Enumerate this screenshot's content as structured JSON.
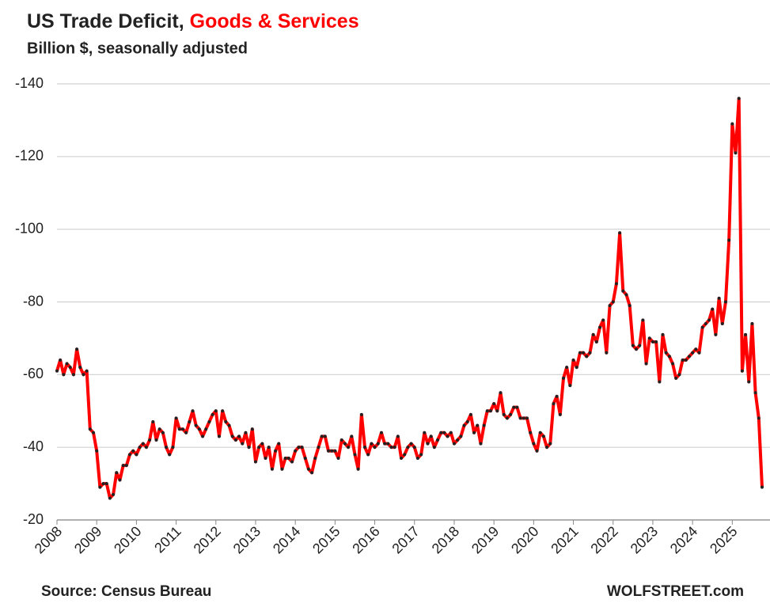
{
  "chart_data": {
    "type": "line",
    "title": "US Trade Deficit,",
    "title_highlight": "Goods & Services",
    "subtitle": "Billion $, seasonally adjusted",
    "source": "Source: Census Bureau",
    "credit": "WOLFSTREET.com",
    "ylim": [
      -20,
      -140
    ],
    "yticks": [
      -140,
      -120,
      -100,
      -80,
      -60,
      -40,
      -20
    ],
    "xlim": [
      2008,
      2025.85
    ],
    "xticks": [
      2008,
      2009,
      2010,
      2011,
      2012,
      2013,
      2014,
      2015,
      2016,
      2017,
      2018,
      2019,
      2020,
      2021,
      2022,
      2023,
      2024,
      2025
    ],
    "grid": true,
    "series": [
      {
        "color": "#ff0000",
        "marker_color": "#222222",
        "x": [
          2008.0,
          2008.083,
          2008.167,
          2008.25,
          2008.333,
          2008.417,
          2008.5,
          2008.583,
          2008.667,
          2008.75,
          2008.833,
          2008.917,
          2009.0,
          2009.083,
          2009.167,
          2009.25,
          2009.333,
          2009.417,
          2009.5,
          2009.583,
          2009.667,
          2009.75,
          2009.833,
          2009.917,
          2010.0,
          2010.083,
          2010.167,
          2010.25,
          2010.333,
          2010.417,
          2010.5,
          2010.583,
          2010.667,
          2010.75,
          2010.833,
          2010.917,
          2011.0,
          2011.083,
          2011.167,
          2011.25,
          2011.333,
          2011.417,
          2011.5,
          2011.583,
          2011.667,
          2011.75,
          2011.833,
          2011.917,
          2012.0,
          2012.083,
          2012.167,
          2012.25,
          2012.333,
          2012.417,
          2012.5,
          2012.583,
          2012.667,
          2012.75,
          2012.833,
          2012.917,
          2013.0,
          2013.083,
          2013.167,
          2013.25,
          2013.333,
          2013.417,
          2013.5,
          2013.583,
          2013.667,
          2013.75,
          2013.833,
          2013.917,
          2014.0,
          2014.083,
          2014.167,
          2014.25,
          2014.333,
          2014.417,
          2014.5,
          2014.583,
          2014.667,
          2014.75,
          2014.833,
          2014.917,
          2015.0,
          2015.083,
          2015.167,
          2015.25,
          2015.333,
          2015.417,
          2015.5,
          2015.583,
          2015.667,
          2015.75,
          2015.833,
          2015.917,
          2016.0,
          2016.083,
          2016.167,
          2016.25,
          2016.333,
          2016.417,
          2016.5,
          2016.583,
          2016.667,
          2016.75,
          2016.833,
          2016.917,
          2017.0,
          2017.083,
          2017.167,
          2017.25,
          2017.333,
          2017.417,
          2017.5,
          2017.583,
          2017.667,
          2017.75,
          2017.833,
          2017.917,
          2018.0,
          2018.083,
          2018.167,
          2018.25,
          2018.333,
          2018.417,
          2018.5,
          2018.583,
          2018.667,
          2018.75,
          2018.833,
          2018.917,
          2019.0,
          2019.083,
          2019.167,
          2019.25,
          2019.333,
          2019.417,
          2019.5,
          2019.583,
          2019.667,
          2019.75,
          2019.833,
          2019.917,
          2020.0,
          2020.083,
          2020.167,
          2020.25,
          2020.333,
          2020.417,
          2020.5,
          2020.583,
          2020.667,
          2020.75,
          2020.833,
          2020.917,
          2021.0,
          2021.083,
          2021.167,
          2021.25,
          2021.333,
          2021.417,
          2021.5,
          2021.583,
          2021.667,
          2021.75,
          2021.833,
          2021.917,
          2022.0,
          2022.083,
          2022.167,
          2022.25,
          2022.333,
          2022.417,
          2022.5,
          2022.583,
          2022.667,
          2022.75,
          2022.833,
          2022.917,
          2023.0,
          2023.083,
          2023.167,
          2023.25,
          2023.333,
          2023.417,
          2023.5,
          2023.583,
          2023.667,
          2023.75,
          2023.833,
          2023.917,
          2024.0,
          2024.083,
          2024.167,
          2024.25,
          2024.333,
          2024.417,
          2024.5,
          2024.583,
          2024.667,
          2024.75,
          2024.833,
          2024.917,
          2025.0,
          2025.083,
          2025.167,
          2025.25,
          2025.333,
          2025.417,
          2025.5,
          2025.583,
          2025.667,
          2025.75
        ],
        "values": [
          -61,
          -64,
          -60,
          -63,
          -62,
          -60,
          -67,
          -62,
          -60,
          -61,
          -45,
          -44,
          -39,
          -29,
          -30,
          -30,
          -26,
          -27,
          -33,
          -31,
          -35,
          -35,
          -38,
          -39,
          -38,
          -40,
          -41,
          -40,
          -42,
          -47,
          -42,
          -45,
          -44,
          -40,
          -38,
          -40,
          -48,
          -45,
          -45,
          -44,
          -47,
          -50,
          -46,
          -45,
          -43,
          -45,
          -47,
          -49,
          -50,
          -43,
          -50,
          -47,
          -46,
          -43,
          -42,
          -43,
          -41,
          -44,
          -40,
          -45,
          -36,
          -40,
          -41,
          -37,
          -40,
          -34,
          -39,
          -41,
          -34,
          -37,
          -37,
          -36,
          -39,
          -40,
          -40,
          -37,
          -34,
          -33,
          -37,
          -40,
          -43,
          -43,
          -39,
          -39,
          -39,
          -37,
          -42,
          -41,
          -40,
          -43,
          -38,
          -34,
          -49,
          -40,
          -38,
          -41,
          -40,
          -41,
          -44,
          -41,
          -41,
          -40,
          -40,
          -43,
          -37,
          -38,
          -40,
          -41,
          -40,
          -37,
          -38,
          -44,
          -41,
          -43,
          -40,
          -42,
          -44,
          -44,
          -43,
          -44,
          -41,
          -42,
          -43,
          -46,
          -47,
          -49,
          -44,
          -46,
          -41,
          -46,
          -50,
          -50,
          -52,
          -50,
          -55,
          -49,
          -48,
          -49,
          -51,
          -51,
          -48,
          -48,
          -48,
          -44,
          -41,
          -39,
          -44,
          -43,
          -40,
          -41,
          -52,
          -54,
          -49,
          -59,
          -62,
          -57,
          -64,
          -62,
          -66,
          -66,
          -65,
          -66,
          -71,
          -69,
          -73,
          -75,
          -66,
          -79,
          -80,
          -85,
          -99,
          -83,
          -82,
          -79,
          -68,
          -67,
          -68,
          -75,
          -63,
          -70,
          -69,
          -69,
          -58,
          -71,
          -66,
          -65,
          -63,
          -59,
          -60,
          -64,
          -64,
          -65,
          -66,
          -67,
          -66,
          -73,
          -74,
          -75,
          -78,
          -71,
          -81,
          -74,
          -80,
          -97,
          -129,
          -121,
          -136,
          -61,
          -71,
          -58,
          -74,
          -55,
          -48,
          -29
        ]
      }
    ]
  }
}
